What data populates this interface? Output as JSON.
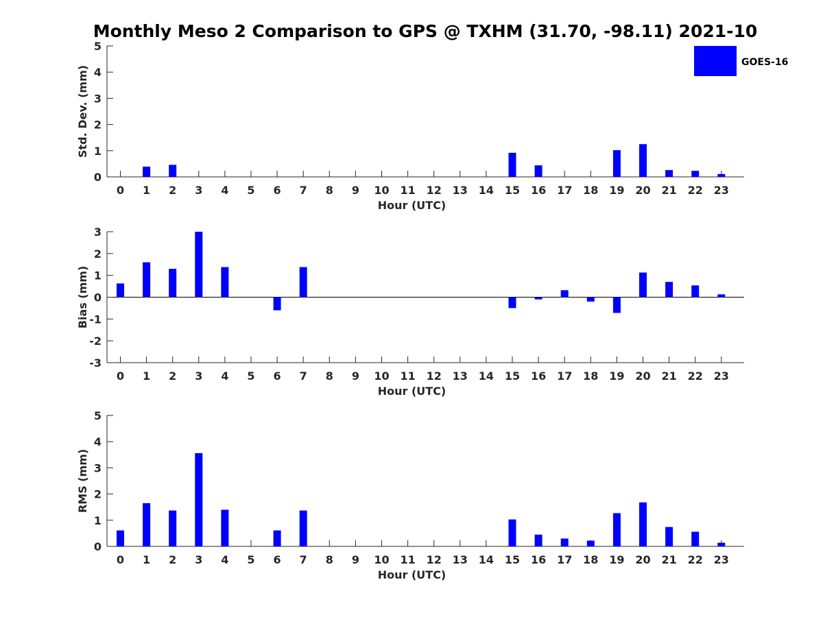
{
  "title": "Monthly Meso 2 Comparison to GPS @ TXHM (31.70, -98.11) 2021-10",
  "colors": {
    "bar": "#0000ff",
    "axis": "#262626",
    "background": "#ffffff"
  },
  "legend": {
    "label": "GOES-16",
    "placement": "top-right"
  },
  "chart_data": [
    {
      "type": "bar",
      "ylabel": "Std. Dev. (mm)",
      "xlabel": "Hour (UTC)",
      "ylim": [
        0,
        5
      ],
      "yticks": [
        0,
        1,
        2,
        3,
        4,
        5
      ],
      "categories": [
        "0",
        "1",
        "2",
        "3",
        "4",
        "5",
        "6",
        "7",
        "8",
        "9",
        "10",
        "11",
        "12",
        "13",
        "14",
        "15",
        "16",
        "17",
        "18",
        "19",
        "20",
        "21",
        "22",
        "23"
      ],
      "series": [
        {
          "name": "GOES-16",
          "values": [
            0,
            0.39,
            0.46,
            0,
            0,
            0,
            0,
            0,
            0,
            0,
            0,
            0,
            0,
            0,
            0,
            0.92,
            0.44,
            0,
            0,
            1.02,
            1.25,
            0.26,
            0.23,
            0.11
          ]
        }
      ]
    },
    {
      "type": "bar",
      "ylabel": "Bias (mm)",
      "xlabel": "Hour (UTC)",
      "ylim": [
        -3,
        3
      ],
      "yticks": [
        -3,
        -2,
        -1,
        0,
        1,
        2,
        3
      ],
      "categories": [
        "0",
        "1",
        "2",
        "3",
        "4",
        "5",
        "6",
        "7",
        "8",
        "9",
        "10",
        "11",
        "12",
        "13",
        "14",
        "15",
        "16",
        "17",
        "18",
        "19",
        "20",
        "21",
        "22",
        "23"
      ],
      "series": [
        {
          "name": "GOES-16",
          "values": [
            0.63,
            1.6,
            1.3,
            3.0,
            1.38,
            0,
            -0.6,
            1.38,
            0,
            0,
            0,
            0,
            0,
            0,
            0,
            -0.5,
            -0.1,
            0.32,
            -0.2,
            -0.72,
            1.13,
            0.7,
            0.54,
            0.13
          ]
        }
      ]
    },
    {
      "type": "bar",
      "ylabel": "RMS (mm)",
      "xlabel": "Hour (UTC)",
      "ylim": [
        0,
        5
      ],
      "yticks": [
        0,
        1,
        2,
        3,
        4,
        5
      ],
      "categories": [
        "0",
        "1",
        "2",
        "3",
        "4",
        "5",
        "6",
        "7",
        "8",
        "9",
        "10",
        "11",
        "12",
        "13",
        "14",
        "15",
        "16",
        "17",
        "18",
        "19",
        "20",
        "21",
        "22",
        "23"
      ],
      "series": [
        {
          "name": "GOES-16",
          "values": [
            0.61,
            1.65,
            1.37,
            3.56,
            1.4,
            0,
            0.61,
            1.37,
            0,
            0,
            0,
            0,
            0,
            0,
            0,
            1.03,
            0.45,
            0.3,
            0.22,
            1.27,
            1.68,
            0.74,
            0.56,
            0.14
          ]
        }
      ]
    }
  ]
}
